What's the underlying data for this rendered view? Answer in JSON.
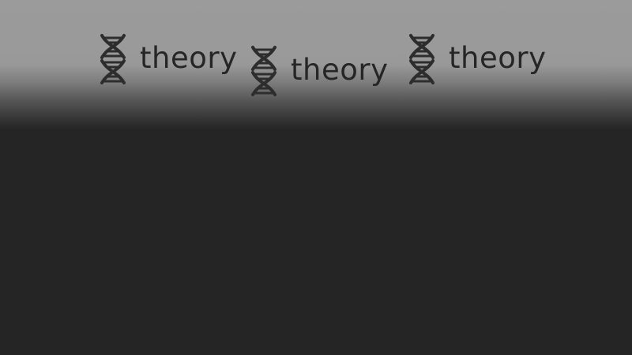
{
  "page": {
    "background_color": "#252525",
    "top_band_color": "#9b9b9b"
  },
  "branding": {
    "logos": [
      {
        "icon": "dna-icon",
        "text": "theory"
      },
      {
        "icon": "dna-icon",
        "text": "theory"
      },
      {
        "icon": "dna-icon",
        "text": "theory"
      }
    ]
  }
}
